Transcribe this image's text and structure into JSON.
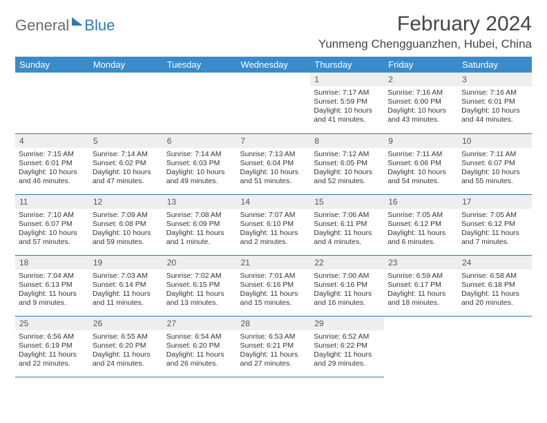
{
  "logo": {
    "part1": "General",
    "part2": "Blue"
  },
  "title": "February 2024",
  "location": "Yunmeng Chengguanzhen, Hubei, China",
  "colors": {
    "header_bg": "#3a8bc9",
    "header_text": "#ffffff",
    "border": "#2f77b5",
    "daynum_bg": "#eeeeee",
    "logo_gray": "#6a6a6a",
    "logo_blue": "#2f77b5"
  },
  "weekdays": [
    "Sunday",
    "Monday",
    "Tuesday",
    "Wednesday",
    "Thursday",
    "Friday",
    "Saturday"
  ],
  "weeks": [
    [
      null,
      null,
      null,
      null,
      {
        "n": "1",
        "sr": "7:17 AM",
        "ss": "5:59 PM",
        "dl": "10 hours and 41 minutes."
      },
      {
        "n": "2",
        "sr": "7:16 AM",
        "ss": "6:00 PM",
        "dl": "10 hours and 43 minutes."
      },
      {
        "n": "3",
        "sr": "7:16 AM",
        "ss": "6:01 PM",
        "dl": "10 hours and 44 minutes."
      }
    ],
    [
      {
        "n": "4",
        "sr": "7:15 AM",
        "ss": "6:01 PM",
        "dl": "10 hours and 46 minutes."
      },
      {
        "n": "5",
        "sr": "7:14 AM",
        "ss": "6:02 PM",
        "dl": "10 hours and 47 minutes."
      },
      {
        "n": "6",
        "sr": "7:14 AM",
        "ss": "6:03 PM",
        "dl": "10 hours and 49 minutes."
      },
      {
        "n": "7",
        "sr": "7:13 AM",
        "ss": "6:04 PM",
        "dl": "10 hours and 51 minutes."
      },
      {
        "n": "8",
        "sr": "7:12 AM",
        "ss": "6:05 PM",
        "dl": "10 hours and 52 minutes."
      },
      {
        "n": "9",
        "sr": "7:11 AM",
        "ss": "6:06 PM",
        "dl": "10 hours and 54 minutes."
      },
      {
        "n": "10",
        "sr": "7:11 AM",
        "ss": "6:07 PM",
        "dl": "10 hours and 55 minutes."
      }
    ],
    [
      {
        "n": "11",
        "sr": "7:10 AM",
        "ss": "6:07 PM",
        "dl": "10 hours and 57 minutes."
      },
      {
        "n": "12",
        "sr": "7:09 AM",
        "ss": "6:08 PM",
        "dl": "10 hours and 59 minutes."
      },
      {
        "n": "13",
        "sr": "7:08 AM",
        "ss": "6:09 PM",
        "dl": "11 hours and 1 minute."
      },
      {
        "n": "14",
        "sr": "7:07 AM",
        "ss": "6:10 PM",
        "dl": "11 hours and 2 minutes."
      },
      {
        "n": "15",
        "sr": "7:06 AM",
        "ss": "6:11 PM",
        "dl": "11 hours and 4 minutes."
      },
      {
        "n": "16",
        "sr": "7:05 AM",
        "ss": "6:12 PM",
        "dl": "11 hours and 6 minutes."
      },
      {
        "n": "17",
        "sr": "7:05 AM",
        "ss": "6:12 PM",
        "dl": "11 hours and 7 minutes."
      }
    ],
    [
      {
        "n": "18",
        "sr": "7:04 AM",
        "ss": "6:13 PM",
        "dl": "11 hours and 9 minutes."
      },
      {
        "n": "19",
        "sr": "7:03 AM",
        "ss": "6:14 PM",
        "dl": "11 hours and 11 minutes."
      },
      {
        "n": "20",
        "sr": "7:02 AM",
        "ss": "6:15 PM",
        "dl": "11 hours and 13 minutes."
      },
      {
        "n": "21",
        "sr": "7:01 AM",
        "ss": "6:16 PM",
        "dl": "11 hours and 15 minutes."
      },
      {
        "n": "22",
        "sr": "7:00 AM",
        "ss": "6:16 PM",
        "dl": "11 hours and 16 minutes."
      },
      {
        "n": "23",
        "sr": "6:59 AM",
        "ss": "6:17 PM",
        "dl": "11 hours and 18 minutes."
      },
      {
        "n": "24",
        "sr": "6:58 AM",
        "ss": "6:18 PM",
        "dl": "11 hours and 20 minutes."
      }
    ],
    [
      {
        "n": "25",
        "sr": "6:56 AM",
        "ss": "6:19 PM",
        "dl": "11 hours and 22 minutes."
      },
      {
        "n": "26",
        "sr": "6:55 AM",
        "ss": "6:20 PM",
        "dl": "11 hours and 24 minutes."
      },
      {
        "n": "27",
        "sr": "6:54 AM",
        "ss": "6:20 PM",
        "dl": "11 hours and 26 minutes."
      },
      {
        "n": "28",
        "sr": "6:53 AM",
        "ss": "6:21 PM",
        "dl": "11 hours and 27 minutes."
      },
      {
        "n": "29",
        "sr": "6:52 AM",
        "ss": "6:22 PM",
        "dl": "11 hours and 29 minutes."
      },
      null,
      null
    ]
  ],
  "labels": {
    "sunrise": "Sunrise:",
    "sunset": "Sunset:",
    "daylight": "Daylight:"
  }
}
